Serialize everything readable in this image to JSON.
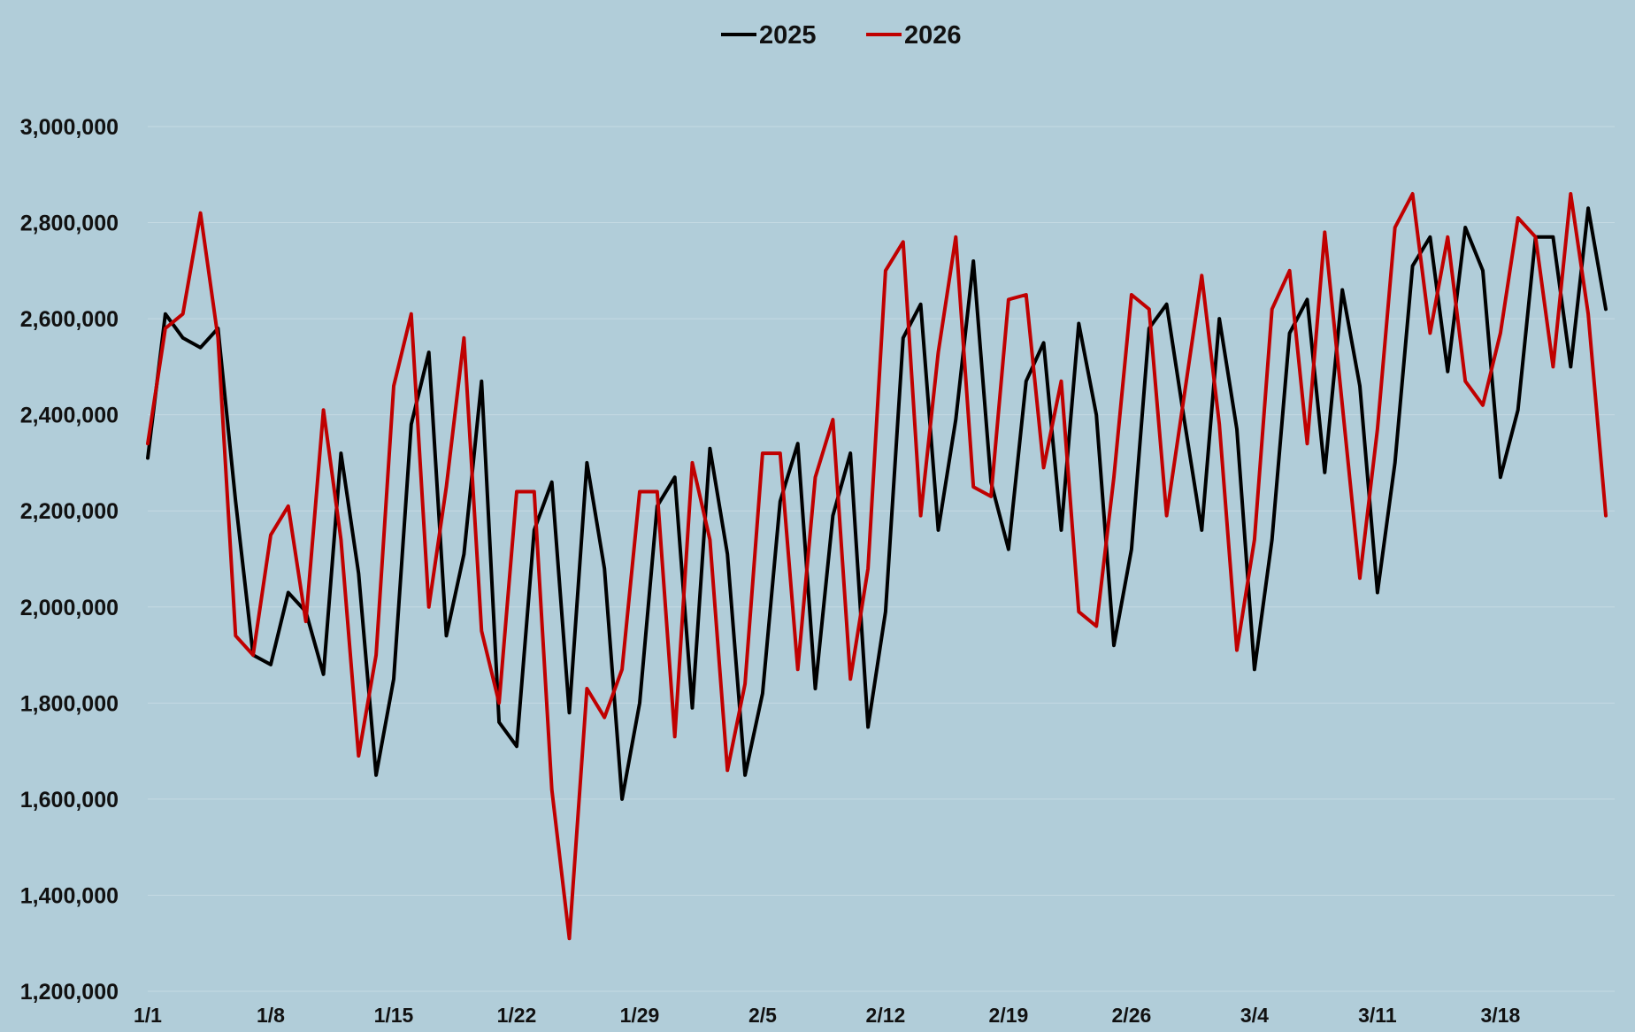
{
  "chart_data": {
    "type": "line",
    "title": "",
    "xlabel": "",
    "ylabel": "",
    "ylim": [
      1200000,
      3000000
    ],
    "yticks": [
      1200000,
      1400000,
      1600000,
      1800000,
      2000000,
      2200000,
      2400000,
      2600000,
      2800000,
      3000000
    ],
    "ytick_labels": [
      "1,200,000",
      "1,400,000",
      "1,600,000",
      "1,800,000",
      "2,000,000",
      "2,200,000",
      "2,400,000",
      "2,600,000",
      "2,800,000",
      "3,000,000"
    ],
    "xtick_labels": [
      "1/1",
      "1/8",
      "1/15",
      "1/22",
      "1/29",
      "2/5",
      "2/12",
      "2/19",
      "2/26",
      "3/4",
      "3/11",
      "3/18"
    ],
    "xtick_every": 7,
    "grid": true,
    "legend_position": "top-center",
    "series": [
      {
        "name": "2025",
        "color": "#000000",
        "values": [
          2310000,
          2610000,
          2560000,
          2540000,
          2580000,
          2220000,
          1900000,
          1880000,
          2030000,
          1990000,
          1860000,
          2320000,
          2070000,
          1650000,
          1850000,
          2380000,
          2530000,
          1940000,
          2110000,
          2470000,
          1760000,
          1710000,
          2160000,
          2260000,
          1780000,
          2300000,
          2080000,
          1600000,
          1800000,
          2210000,
          2270000,
          1790000,
          2330000,
          2110000,
          1650000,
          1820000,
          2220000,
          2340000,
          1830000,
          2190000,
          2320000,
          1750000,
          1990000,
          2560000,
          2630000,
          2160000,
          2390000,
          2720000,
          2260000,
          2120000,
          2470000,
          2550000,
          2160000,
          2590000,
          2400000,
          1920000,
          2120000,
          2580000,
          2630000,
          2390000,
          2160000,
          2600000,
          2370000,
          1870000,
          2140000,
          2570000,
          2640000,
          2280000,
          2660000,
          2460000,
          2030000,
          2300000,
          2710000,
          2770000,
          2490000,
          2790000,
          2700000,
          2270000,
          2410000,
          2770000,
          2770000,
          2500000,
          2830000,
          2620000
        ]
      },
      {
        "name": "2026",
        "color": "#c00000",
        "values": [
          2340000,
          2580000,
          2610000,
          2820000,
          2560000,
          1940000,
          1900000,
          2150000,
          2210000,
          1970000,
          2410000,
          2140000,
          1690000,
          1900000,
          2460000,
          2610000,
          2000000,
          2250000,
          2560000,
          1950000,
          1800000,
          2240000,
          2240000,
          1620000,
          1310000,
          1830000,
          1770000,
          1870000,
          2240000,
          2240000,
          1730000,
          2300000,
          2140000,
          1660000,
          1840000,
          2320000,
          2320000,
          1870000,
          2270000,
          2390000,
          1850000,
          2080000,
          2700000,
          2760000,
          2190000,
          2530000,
          2770000,
          2250000,
          2230000,
          2640000,
          2650000,
          2290000,
          2470000,
          1990000,
          1960000,
          2270000,
          2650000,
          2620000,
          2190000,
          2440000,
          2690000,
          2380000,
          1910000,
          2140000,
          2620000,
          2700000,
          2340000,
          2780000,
          2420000,
          2060000,
          2370000,
          2790000,
          2860000,
          2570000,
          2770000,
          2470000,
          2420000,
          2570000,
          2810000,
          2770000,
          2500000,
          2860000,
          2610000,
          2190000
        ]
      }
    ]
  }
}
